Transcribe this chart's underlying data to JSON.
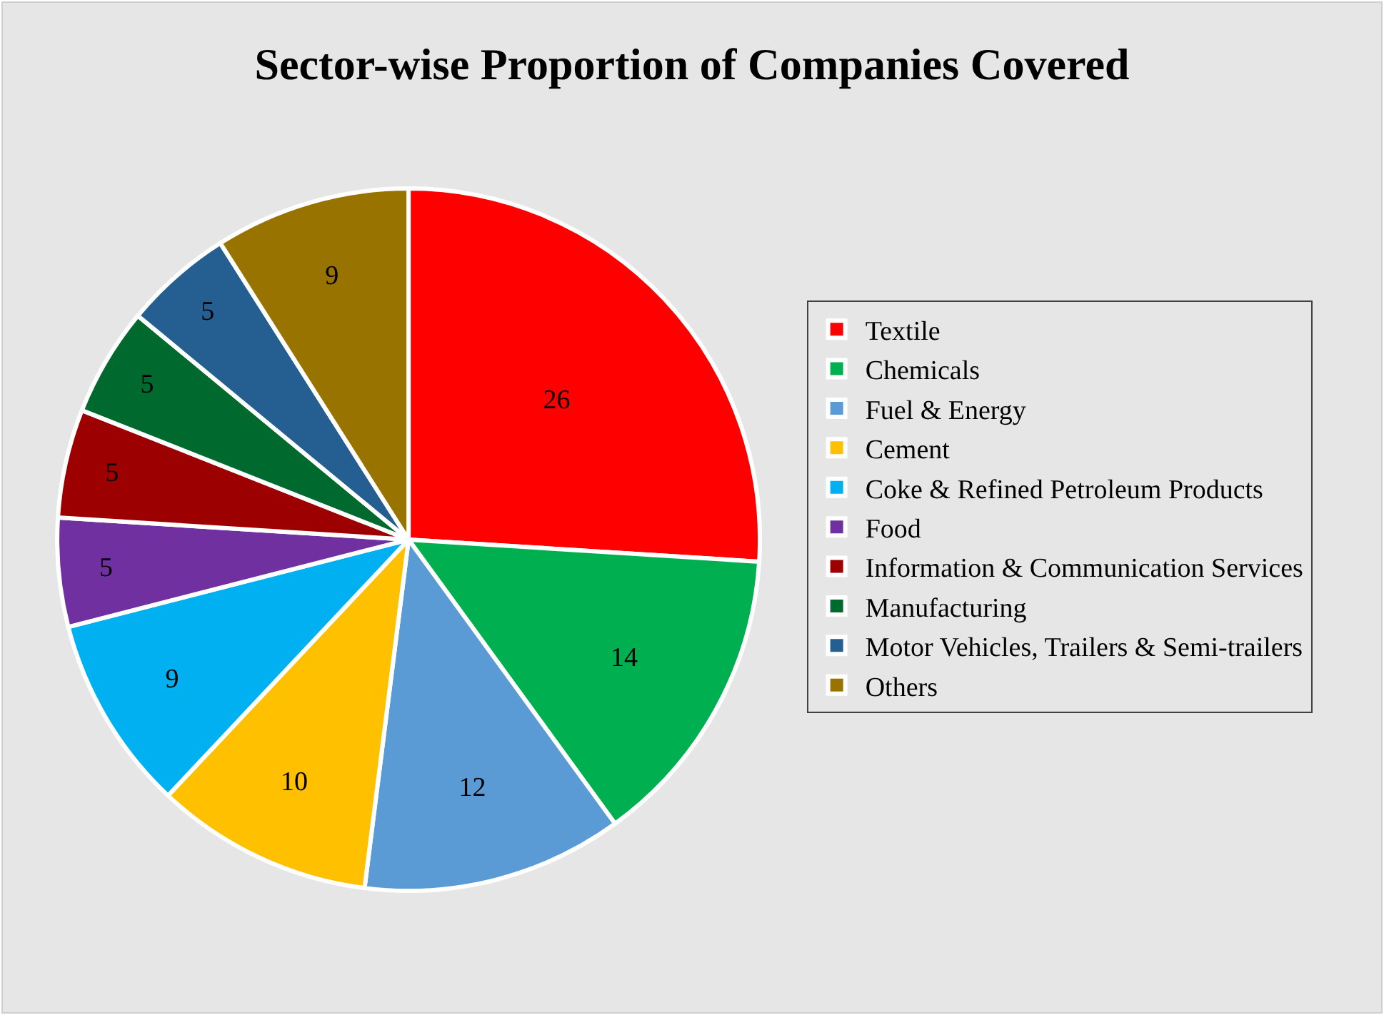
{
  "chart_data": {
    "type": "pie",
    "title": "Sector-wise Proportion of Companies Covered",
    "categories": [
      "Textile",
      "Chemicals",
      "Fuel & Energy",
      "Cement",
      "Coke & Refined Petroleum Products",
      "Food",
      "Information & Communication Services",
      "Manufacturing",
      "Motor Vehicles, Trailers & Semi-trailers",
      "Others"
    ],
    "values": [
      26,
      14,
      12,
      10,
      9,
      5,
      5,
      5,
      5,
      9
    ],
    "colors": [
      "#ff0000",
      "#00b050",
      "#5b9bd5",
      "#ffc000",
      "#00b0f0",
      "#7030a0",
      "#9c0000",
      "#006a2e",
      "#255e91",
      "#997300"
    ],
    "data_labels": true,
    "legend": "right"
  }
}
